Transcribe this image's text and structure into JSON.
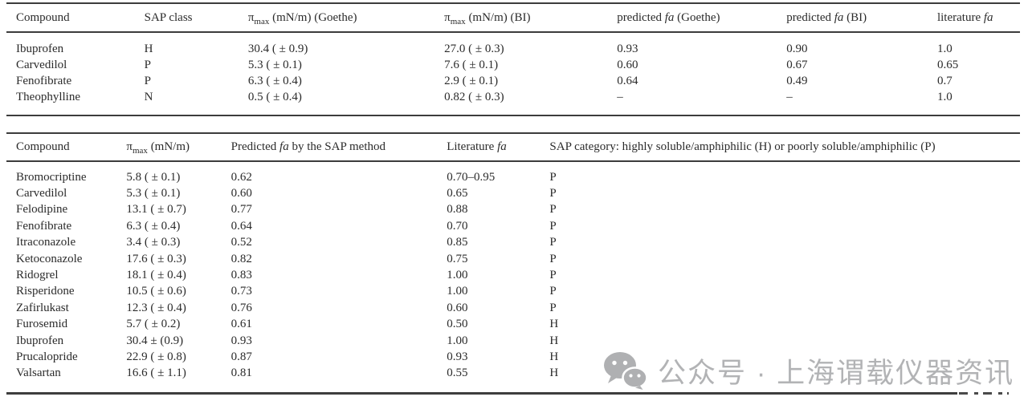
{
  "table1": {
    "columns": [
      [
        {
          "t": "Compound"
        }
      ],
      [
        {
          "t": "SAP class"
        }
      ],
      [
        {
          "t": "π"
        },
        {
          "t": "max",
          "s": "sub"
        },
        {
          "t": " (mN/m) (Goethe)"
        }
      ],
      [
        {
          "t": "π"
        },
        {
          "t": "max",
          "s": "sub"
        },
        {
          "t": " (mN/m) (BI)"
        }
      ],
      [
        {
          "t": "predicted "
        },
        {
          "t": "fa",
          "s": "i"
        },
        {
          "t": " (Goethe)"
        }
      ],
      [
        {
          "t": "predicted "
        },
        {
          "t": "fa",
          "s": "i"
        },
        {
          "t": " (BI)"
        }
      ],
      [
        {
          "t": "literature "
        },
        {
          "t": "fa",
          "s": "i"
        }
      ]
    ],
    "rows": [
      [
        "Ibuprofen",
        "H",
        "30.4 ( ± 0.9)",
        "27.0 ( ± 0.3)",
        "0.93",
        "0.90",
        "1.0"
      ],
      [
        "Carvedilol",
        "P",
        "5.3 ( ± 0.1)",
        "7.6 ( ± 0.1)",
        "0.60",
        "0.67",
        "0.65"
      ],
      [
        "Fenofibrate",
        "P",
        "6.3 ( ± 0.4)",
        "2.9 ( ± 0.1)",
        "0.64",
        "0.49",
        "0.7"
      ],
      [
        "Theophylline",
        "N",
        "0.5 ( ± 0.4)",
        "0.82 ( ± 0.3)",
        "–",
        "–",
        "1.0"
      ]
    ]
  },
  "table2": {
    "columns": [
      [
        {
          "t": "Compound"
        }
      ],
      [
        {
          "t": "π"
        },
        {
          "t": "max",
          "s": "sub"
        },
        {
          "t": " (mN/m)"
        }
      ],
      [
        {
          "t": "Predicted "
        },
        {
          "t": "fa",
          "s": "i"
        },
        {
          "t": " by the SAP method"
        }
      ],
      [
        {
          "t": "Literature "
        },
        {
          "t": "fa",
          "s": "i"
        }
      ],
      [
        {
          "t": "SAP category: highly soluble/amphiphilic (H) or poorly soluble/amphiphilic (P)"
        }
      ]
    ],
    "rows": [
      [
        "Bromocriptine",
        "5.8 ( ± 0.1)",
        "0.62",
        "0.70–0.95",
        "P"
      ],
      [
        "Carvedilol",
        "5.3 ( ± 0.1)",
        "0.60",
        "0.65",
        "P"
      ],
      [
        "Felodipine",
        "13.1 ( ± 0.7)",
        "0.77",
        "0.88",
        "P"
      ],
      [
        "Fenofibrate",
        "6.3 ( ± 0.4)",
        "0.64",
        "0.70",
        "P"
      ],
      [
        "Itraconazole",
        "3.4 ( ± 0.3)",
        "0.52",
        "0.85",
        "P"
      ],
      [
        "Ketoconazole",
        "17.6 ( ± 0.3)",
        "0.82",
        "0.75",
        "P"
      ],
      [
        "Ridogrel",
        "18.1 ( ± 0.4)",
        "0.83",
        "1.00",
        "P"
      ],
      [
        "Risperidone",
        "10.5 ( ± 0.6)",
        "0.73",
        "1.00",
        "P"
      ],
      [
        "Zafirlukast",
        "12.3 ( ± 0.4)",
        "0.76",
        "0.60",
        "P"
      ],
      [
        "Furosemid",
        "5.7 ( ± 0.2)",
        "0.61",
        "0.50",
        "H"
      ],
      [
        "Ibuprofen",
        "30.4 ± (0.9)",
        "0.93",
        "1.00",
        "H"
      ],
      [
        "Prucalopride",
        "22.9 ( ± 0.8)",
        "0.87",
        "0.93",
        "H"
      ],
      [
        "Valsartan",
        "16.6 ( ± 1.1)",
        "0.81",
        "0.55",
        "H"
      ]
    ]
  },
  "watermark": {
    "text": "公众号 · 上海谓载仪器资讯",
    "color": "#b2b3b5",
    "icon": "wechat-icon"
  }
}
